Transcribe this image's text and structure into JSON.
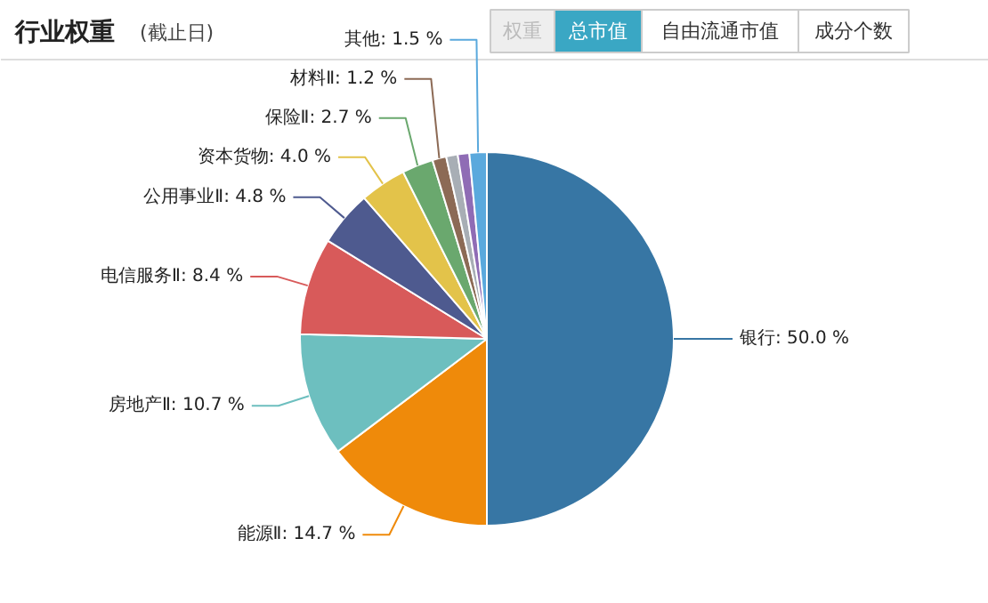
{
  "chart_data": {
    "type": "pie",
    "title": "行业权重",
    "subtitle": "(截止日)",
    "annotations": [
      "权重",
      "总市值",
      "自由流通市值",
      "成分个数"
    ],
    "categories": [
      "银行",
      "能源Ⅱ",
      "房地产Ⅱ",
      "电信服务Ⅱ",
      "公用事业Ⅱ",
      "资本货物",
      "保险Ⅱ",
      "材料Ⅱ",
      null,
      null,
      "其他"
    ],
    "values": [
      50.0,
      14.7,
      10.7,
      8.4,
      4.8,
      4.0,
      2.7,
      1.2,
      1.0,
      1.0,
      1.5
    ],
    "value_labels": [
      "50.0 %",
      "14.7 %",
      "10.7 %",
      "8.4 %",
      "4.8 %",
      "4.0 %",
      "2.7 %",
      "1.2 %",
      null,
      null,
      "1.5 %"
    ],
    "colors": [
      "#3776a4",
      "#ef8a0a",
      "#6dbfbf",
      "#d85a5a",
      "#4e5a8f",
      "#e3c34a",
      "#6aa86e",
      "#8c6a55",
      "#a8aeb5",
      "#8f6cb5",
      "#5aa9dd"
    ]
  }
}
